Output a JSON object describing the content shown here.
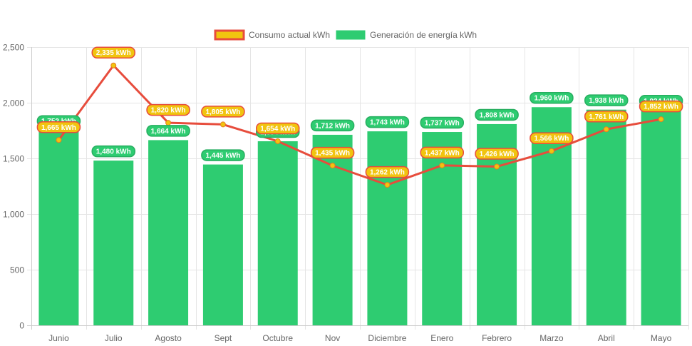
{
  "chart_data": {
    "type": "bar",
    "title": "",
    "xlabel": "",
    "ylabel": "",
    "ylim": [
      0,
      2500
    ],
    "yticks": [
      0,
      500,
      1000,
      1500,
      2000,
      2500
    ],
    "ytick_labels": [
      "0",
      "500",
      "1,000",
      "1,500",
      "2,000",
      "2,500"
    ],
    "grid": true,
    "legend_position": "top-center",
    "categories": [
      "Junio",
      "Julio",
      "Agosto",
      "Sept",
      "Octubre",
      "Nov",
      "Diciembre",
      "Enero",
      "Febrero",
      "Marzo",
      "Abril",
      "Mayo"
    ],
    "series": [
      {
        "name": "Consumo actual kWh",
        "type": "line",
        "color": "#e74c3c",
        "point_color": "#f1c40f",
        "values": [
          1665,
          2335,
          1820,
          1805,
          1654,
          1435,
          1262,
          1437,
          1426,
          1566,
          1761,
          1852
        ],
        "labels": [
          "1,665 kWh",
          "2,335 kWh",
          "1,820 kWh",
          "1,805 kWh",
          "1,654 kWh",
          "1,435 kWh",
          "1,262 kWh",
          "1,437 kWh",
          "1,426 kWh",
          "1,566 kWh",
          "1,761 kWh",
          "1,852 kWh"
        ]
      },
      {
        "name": "Generación de energía kWh",
        "type": "bar",
        "color": "#2ecc71",
        "values": [
          1752,
          1480,
          1664,
          1445,
          1654,
          1712,
          1743,
          1737,
          1808,
          1960,
          1938,
          1934
        ],
        "labels": [
          "1,752 kWh",
          "1,480 kWh",
          "1,664 kWh",
          "1,445 kWh",
          "1,654 kWh",
          "1,712 kWh",
          "1,743 kWh",
          "1,737 kWh",
          "1,808 kWh",
          "1,960 kWh",
          "1,938 kWh",
          "1,934 kWh"
        ]
      }
    ]
  }
}
